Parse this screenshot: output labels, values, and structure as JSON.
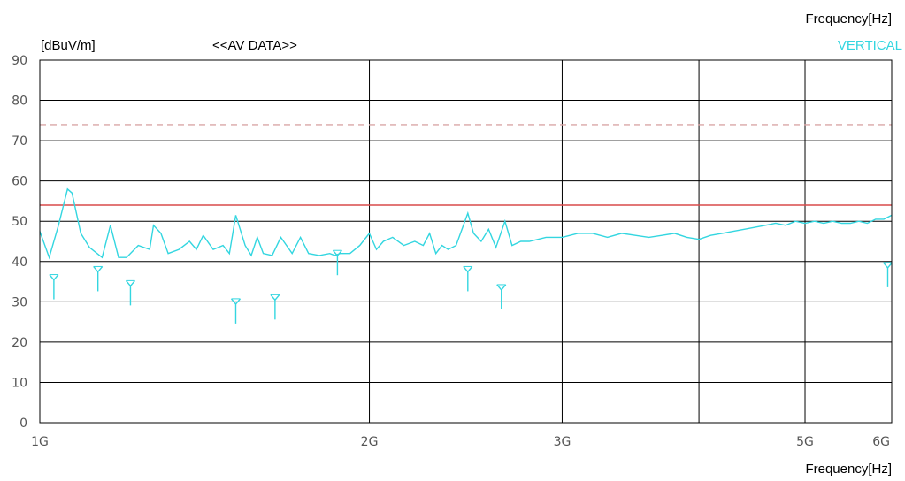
{
  "chart_data": {
    "type": "line",
    "title": "<<AV DATA>>",
    "ylabel": "[dBuV/m]",
    "xlabel": "Frequency[Hz]",
    "xlabel_top": "Frequency[Hz]",
    "legend": "VERTICAL",
    "x_scale": "log",
    "xlim": [
      1000000000,
      6000000000
    ],
    "ylim": [
      0,
      90
    ],
    "y_ticks": [
      0,
      10,
      20,
      30,
      40,
      50,
      60,
      70,
      80,
      90
    ],
    "x_ticks": [
      {
        "label": "1G",
        "value": 1000000000
      },
      {
        "label": "2G",
        "value": 2000000000
      },
      {
        "label": "3G",
        "value": 3000000000
      },
      {
        "label": "5G",
        "value": 5000000000
      },
      {
        "label": "6G",
        "value": 6000000000
      }
    ],
    "x_gridlines": [
      1000000000,
      2000000000,
      3000000000,
      4000000000,
      5000000000,
      6000000000
    ],
    "grid": true,
    "limit_lines": [
      {
        "value": 54,
        "color": "#d94a4a",
        "style": "solid"
      },
      {
        "value": 74,
        "color": "#d9a6a6",
        "style": "dashed"
      }
    ],
    "series_color": "#33d6e0",
    "series": [
      {
        "x": [
          1000000000,
          1020000000,
          1040000000,
          1060000000,
          1070000000,
          1090000000,
          1110000000,
          1140000000,
          1160000000,
          1180000000,
          1200000000,
          1230000000,
          1260000000,
          1270000000,
          1290000000,
          1310000000,
          1340000000,
          1370000000,
          1390000000,
          1410000000,
          1440000000,
          1470000000,
          1490000000,
          1510000000,
          1540000000,
          1560000000,
          1580000000,
          1600000000,
          1630000000,
          1660000000,
          1700000000,
          1730000000,
          1760000000,
          1800000000,
          1840000000,
          1860000000,
          1880000000,
          1920000000,
          1960000000,
          2000000000,
          2030000000,
          2060000000,
          2100000000,
          2150000000,
          2200000000,
          2240000000,
          2270000000,
          2300000000,
          2330000000,
          2360000000,
          2400000000,
          2430000000,
          2460000000,
          2490000000,
          2530000000,
          2570000000,
          2610000000,
          2660000000,
          2700000000,
          2750000000,
          2800000000,
          2900000000,
          3000000000,
          3100000000,
          3200000000,
          3300000000,
          3400000000,
          3500000000,
          3600000000,
          3700000000,
          3800000000,
          3900000000,
          4000000000,
          4100000000,
          4200000000,
          4300000000,
          4400000000,
          4500000000,
          4600000000,
          4700000000,
          4800000000,
          4900000000,
          5000000000,
          5100000000,
          5200000000,
          5300000000,
          5400000000,
          5500000000,
          5600000000,
          5700000000,
          5800000000,
          5900000000,
          6000000000
        ],
        "values": [
          47.5,
          41,
          49,
          58,
          57,
          47,
          43.5,
          41,
          49,
          41,
          41,
          44,
          43,
          49,
          47,
          42,
          43,
          45,
          43,
          46.5,
          43,
          44,
          42,
          51.5,
          44,
          41.5,
          46,
          42,
          41.5,
          46,
          42,
          46,
          42,
          41.5,
          42,
          41.5,
          42,
          42,
          44,
          47,
          43,
          45,
          46,
          44,
          45,
          44,
          47,
          42,
          44,
          43,
          44,
          48,
          52,
          47,
          45,
          48,
          43.5,
          50,
          44,
          45,
          45,
          46,
          46,
          47,
          47,
          46,
          47,
          46.5,
          46,
          46.5,
          47,
          46,
          45.5,
          46.5,
          47,
          47.5,
          48,
          48.5,
          49,
          49.5,
          49,
          50,
          49.5,
          50,
          49.5,
          50,
          49.5,
          49.5,
          50,
          49.5,
          50.5,
          50.5,
          51.5
        ]
      }
    ],
    "peak_markers": [
      {
        "x": 1030000000,
        "value": 35
      },
      {
        "x": 1130000000,
        "value": 37
      },
      {
        "x": 1210000000,
        "value": 33.5
      },
      {
        "x": 1510000000,
        "value": 29
      },
      {
        "x": 1640000000,
        "value": 30
      },
      {
        "x": 1870000000,
        "value": 41
      },
      {
        "x": 2460000000,
        "value": 37
      },
      {
        "x": 2640000000,
        "value": 32.5
      },
      {
        "x": 5950000000,
        "value": 38
      }
    ]
  }
}
